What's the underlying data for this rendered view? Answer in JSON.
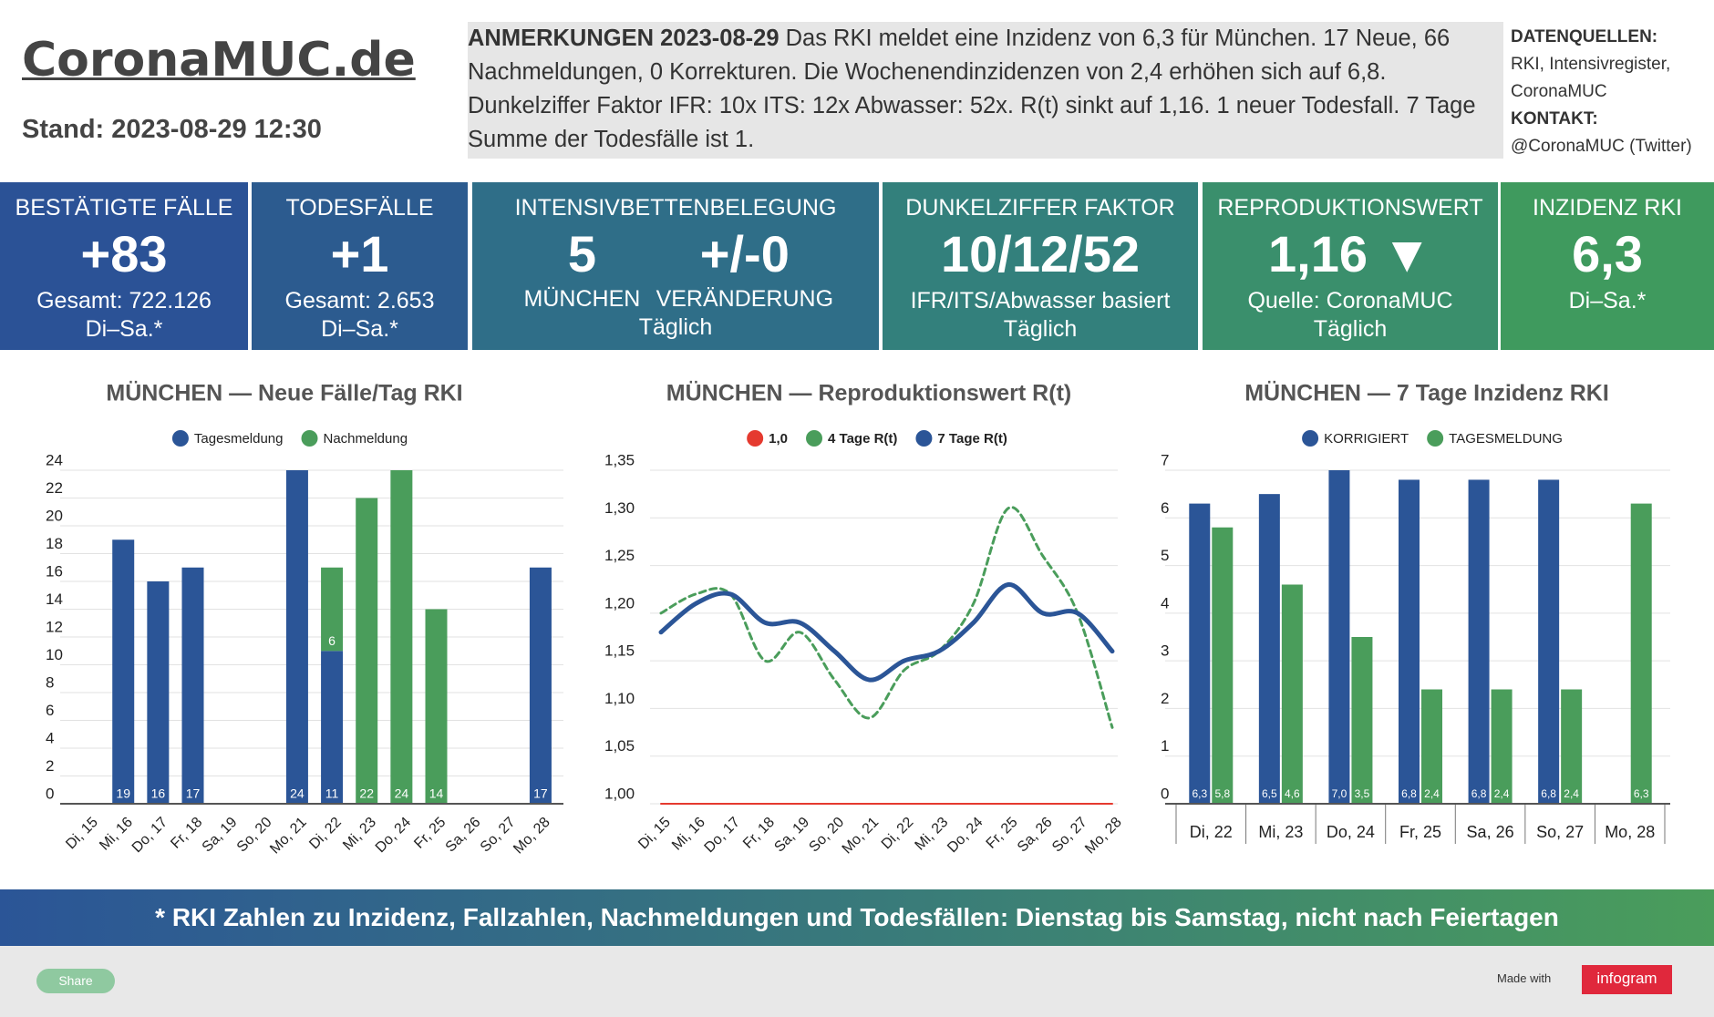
{
  "header": {
    "title": "CoronaMUC.de",
    "stand": "Stand: 2023-08-29 12:30"
  },
  "notes": {
    "heading": "ANMERKUNGEN 2023-08-29",
    "text": "Das RKI meldet eine Inzidenz von 6,3 für München. 17 Neue, 66 Nachmeldungen, 0 Korrekturen. Die Wochenendinzidenzen von 2,4 erhöhen sich auf 6,8. Dunkelziffer Faktor IFR: 10x ITS: 12x Abwasser: 52x. R(t) sinkt auf 1,16. 1 neuer Todesfall. 7 Tage Summe der Todesfälle ist 1."
  },
  "sources": {
    "heading": "DATENQUELLEN:",
    "text": "RKI, Intensivregister, CoronaMUC",
    "contact_heading": "KONTAKT:",
    "contact": "@CoronaMUC (Twitter)"
  },
  "tiles": [
    {
      "title": "BESTÄTIGTE FÄLLE",
      "values": [
        "+83"
      ],
      "lines": [
        "Gesamt: 722.126",
        "Di–Sa.*"
      ]
    },
    {
      "title": "TODESFÄLLE",
      "values": [
        "+1"
      ],
      "lines": [
        "Gesamt: 2.653",
        "Di–Sa.*"
      ]
    },
    {
      "title": "INTENSIVBETTENBELEGUNG",
      "values": [
        "5",
        "+/-0"
      ],
      "labels": [
        "MÜNCHEN",
        "VERÄNDERUNG"
      ],
      "lines": [
        "Täglich"
      ]
    },
    {
      "title": "DUNKELZIFFER FAKTOR",
      "values": [
        "10/12/52"
      ],
      "lines": [
        "IFR/ITS/Abwasser basiert",
        "Täglich"
      ]
    },
    {
      "title": "REPRODUKTIONSWERT",
      "values": [
        "1,16 ▼"
      ],
      "lines": [
        "Quelle: CoronaMUC",
        "Täglich"
      ]
    },
    {
      "title": "INZIDENZ RKI",
      "values": [
        "6,3"
      ],
      "lines": [
        "Di–Sa.*"
      ]
    }
  ],
  "chart_data": [
    {
      "type": "bar",
      "stacked": true,
      "title": "MÜNCHEN — Neue Fälle/Tag RKI",
      "legend": "top",
      "grid": true,
      "categories": [
        "Di, 15",
        "Mi, 16",
        "Do, 17",
        "Fr, 18",
        "Sa, 19",
        "So, 20",
        "Mo, 21",
        "Di, 22",
        "Mi, 23",
        "Do, 24",
        "Fr, 25",
        "Sa, 26",
        "So, 27",
        "Mo, 28"
      ],
      "series": [
        {
          "name": "Tagesmeldung",
          "color": "#2b5597",
          "values": [
            null,
            19,
            16,
            17,
            null,
            null,
            24,
            11,
            null,
            null,
            null,
            null,
            null,
            17
          ]
        },
        {
          "name": "Nachmeldung",
          "color": "#4a9d5b",
          "values": [
            null,
            null,
            null,
            null,
            null,
            null,
            null,
            6,
            22,
            24,
            14,
            null,
            null,
            null
          ]
        }
      ],
      "ylim": [
        0,
        24
      ],
      "yticks": [
        0,
        2,
        4,
        6,
        8,
        10,
        12,
        14,
        16,
        18,
        20,
        22,
        24
      ]
    },
    {
      "type": "line",
      "title": "MÜNCHEN — Reproduktionswert R(t)",
      "legend": "top",
      "grid": true,
      "categories": [
        "Di, 15",
        "Mi, 16",
        "Do, 17",
        "Fr, 18",
        "Sa, 19",
        "So, 20",
        "Mo, 21",
        "Di, 22",
        "Mi, 23",
        "Do, 24",
        "Fr, 25",
        "Sa, 26",
        "So, 27",
        "Mo, 28"
      ],
      "series": [
        {
          "name": "1,0",
          "color": "#e53a2f",
          "style": "solid",
          "width": 2,
          "values": [
            1.0,
            1.0,
            1.0,
            1.0,
            1.0,
            1.0,
            1.0,
            1.0,
            1.0,
            1.0,
            1.0,
            1.0,
            1.0,
            1.0
          ]
        },
        {
          "name": "4 Tage R(t)",
          "color": "#4a9d5b",
          "style": "dashed",
          "width": 3,
          "values": [
            1.2,
            1.22,
            1.22,
            1.15,
            1.18,
            1.13,
            1.09,
            1.14,
            1.16,
            1.21,
            1.31,
            1.26,
            1.2,
            1.08
          ]
        },
        {
          "name": "7 Tage R(t)",
          "color": "#2b5597",
          "style": "solid",
          "width": 5,
          "values": [
            1.18,
            1.21,
            1.22,
            1.19,
            1.19,
            1.16,
            1.13,
            1.15,
            1.16,
            1.19,
            1.23,
            1.2,
            1.2,
            1.16
          ]
        }
      ],
      "ylim": [
        1.0,
        1.35
      ],
      "yticks": [
        {
          "value": 1.0,
          "label": "1,00"
        },
        {
          "value": 1.05,
          "label": "1,05"
        },
        {
          "value": 1.1,
          "label": "1,10"
        },
        {
          "value": 1.15,
          "label": "1,15"
        },
        {
          "value": 1.2,
          "label": "1,20"
        },
        {
          "value": 1.25,
          "label": "1,25"
        },
        {
          "value": 1.3,
          "label": "1,30"
        },
        {
          "value": 1.35,
          "label": "1,35"
        }
      ]
    },
    {
      "type": "bar",
      "stacked": false,
      "title": "MÜNCHEN — 7 Tage Inzidenz RKI",
      "legend": "top",
      "grid": true,
      "categories": [
        "Di, 22",
        "Mi, 23",
        "Do, 24",
        "Fr, 25",
        "Sa, 26",
        "So, 27",
        "Mo, 28"
      ],
      "series": [
        {
          "name": "KORRIGIERT",
          "color": "#2b5597",
          "values": [
            6.3,
            6.5,
            7.0,
            6.8,
            6.8,
            6.8,
            null
          ],
          "value_labels": [
            "6,3",
            "6,5",
            "7,0",
            "6,8",
            "6,8",
            "6,8",
            null
          ]
        },
        {
          "name": "TAGESMELDUNG",
          "color": "#4a9d5b",
          "values": [
            5.8,
            4.6,
            3.5,
            2.4,
            2.4,
            2.4,
            6.3
          ],
          "value_labels": [
            "5,8",
            "4,6",
            "3,5",
            "2,4",
            "2,4",
            "2,4",
            "6,3"
          ]
        }
      ],
      "ylim": [
        0,
        7
      ],
      "yticks": [
        0,
        1,
        2,
        3,
        4,
        5,
        6,
        7
      ]
    }
  ],
  "footer": {
    "note": "* RKI Zahlen zu Inzidenz, Fallzahlen, Nachmeldungen und Todesfällen: Dienstag bis Samstag, nicht nach Feiertagen",
    "share": "Share",
    "made_with": "Made with",
    "brand": "infogram"
  }
}
